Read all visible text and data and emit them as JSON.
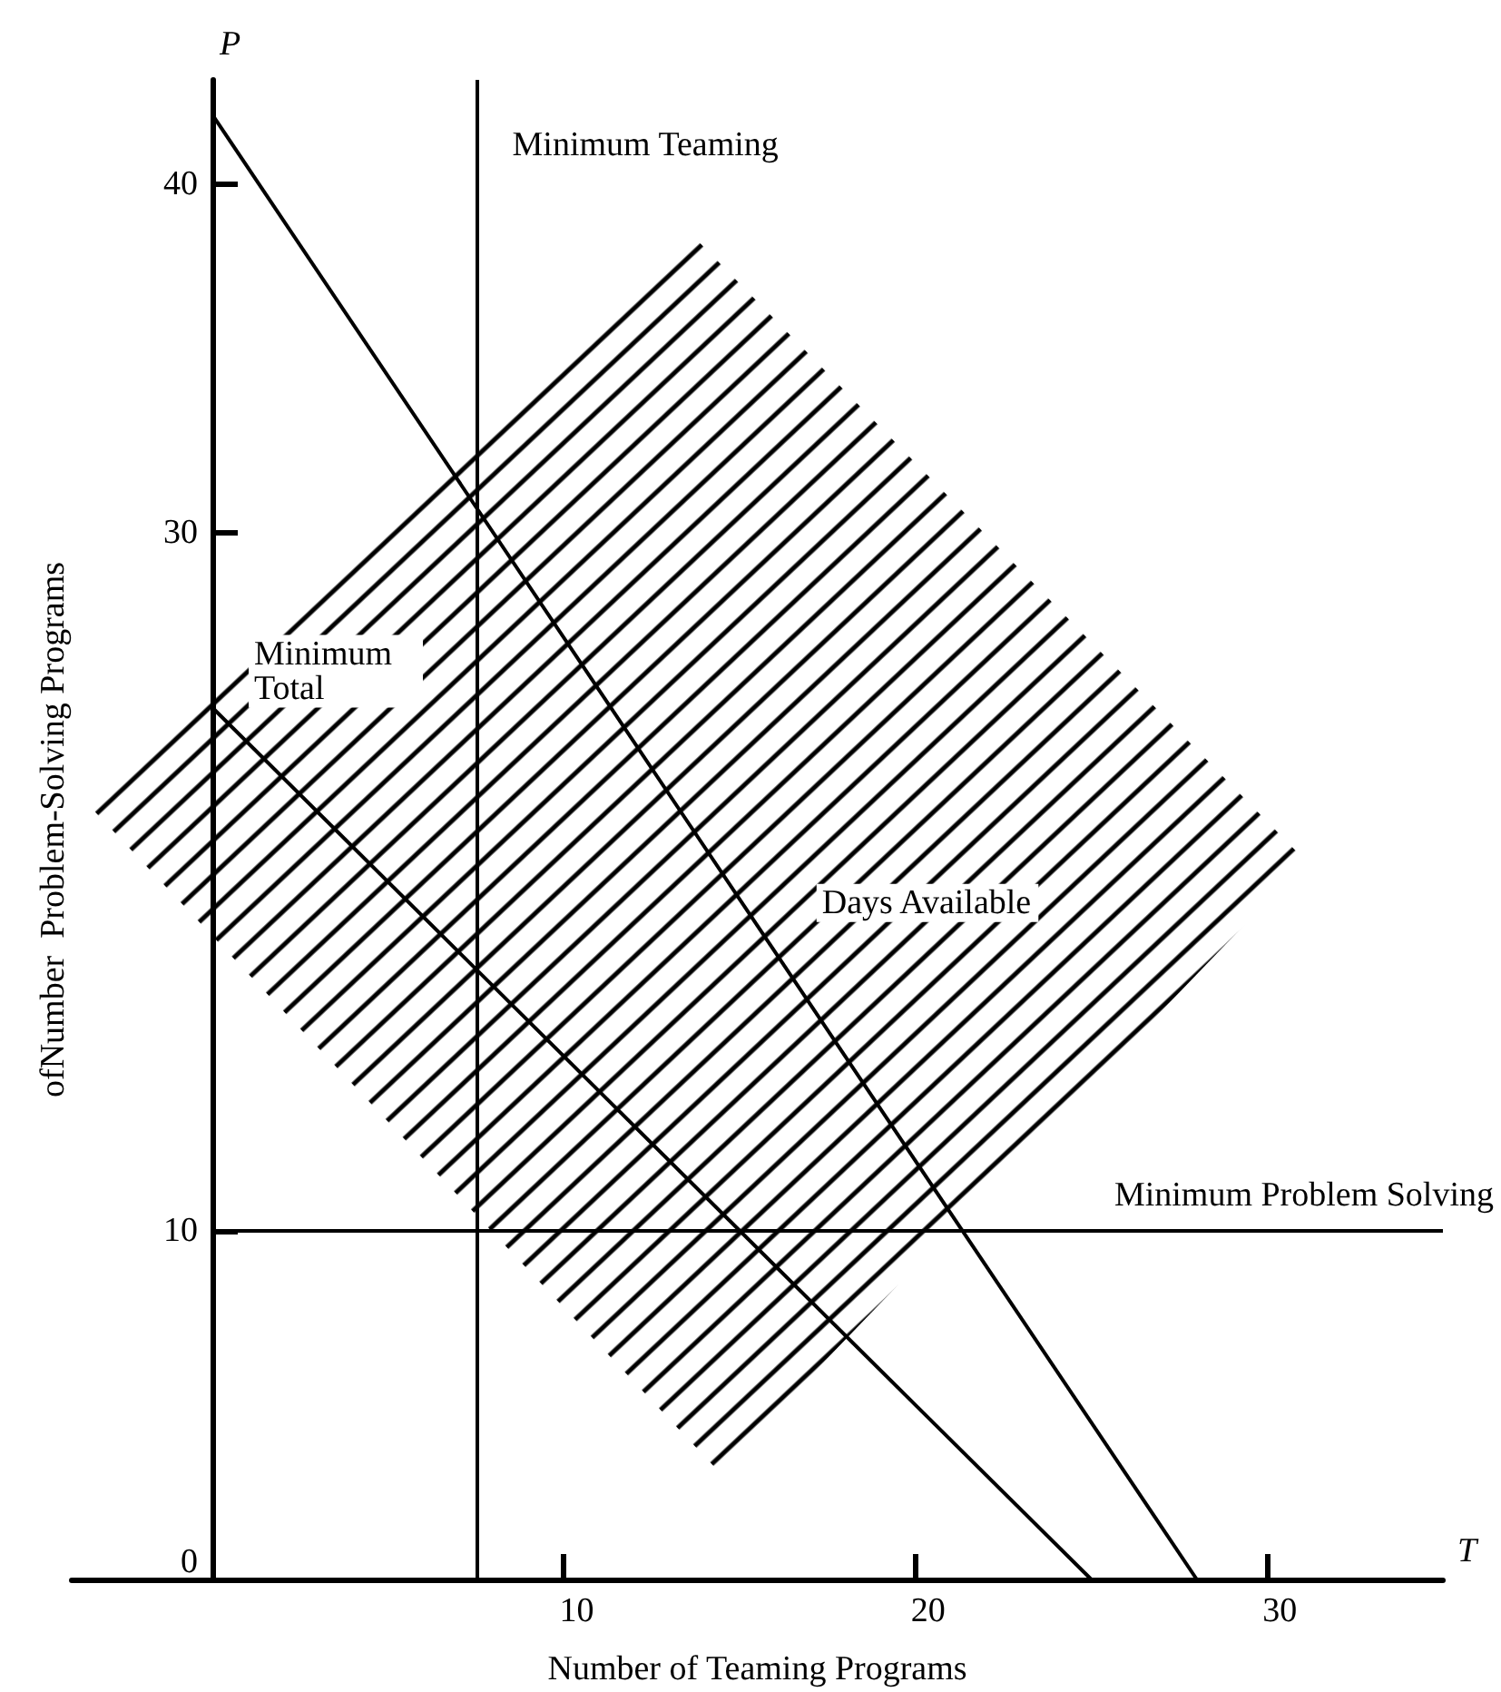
{
  "chart_data": {
    "type": "line",
    "xlabel": "Number of Teaming Programs",
    "ylabel": "ofNumber  Problem-Solving Programs",
    "xlim": [
      -4,
      35
    ],
    "ylim": [
      0,
      43
    ],
    "xticks": [
      10,
      20,
      30
    ],
    "yticks": [
      0,
      10,
      30,
      40
    ],
    "grid": false,
    "legend": false,
    "marker": "none",
    "line_style": "solid",
    "series": [
      {
        "name": "Days Available",
        "color": "#000000",
        "x": [
          0,
          28
        ],
        "values": [
          42,
          0
        ]
      },
      {
        "name": "Minimum Total",
        "color": "#000000",
        "x": [
          0,
          25
        ],
        "values": [
          25,
          0
        ]
      },
      {
        "type": "area",
        "color": "#000000",
        "x": [
          -3.7,
          13.5,
          31.1,
          14.4,
          -3.7
        ],
        "values": [
          22.4,
          38.7,
          20.6,
          3.1,
          22.4
        ]
      }
    ],
    "ref_lines": [
      {
        "axis": "x",
        "value": 7.5,
        "label": "Minimum Teaming",
        "color": "#000000"
      },
      {
        "axis": "y",
        "value": 10,
        "label": "Minimum Problem Solving",
        "color": "#000000"
      }
    ],
    "annotations": [
      "P",
      "T"
    ]
  }
}
